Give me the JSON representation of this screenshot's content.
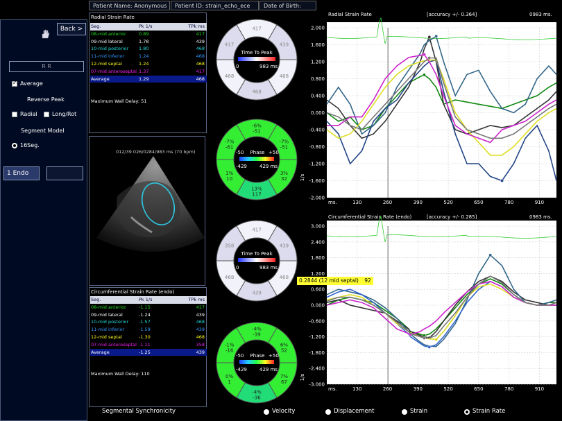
{
  "header": {
    "patient_name": "Patient Name: Anonymous",
    "patient_id": "Patient ID: strain_echo_ece",
    "date_of_birth": "Date of Birth:"
  },
  "left_panel": {
    "back_label": "Back >",
    "rr_label": "R R",
    "average_label": "Average",
    "reverse_peak_label": "Reverse Peak",
    "radial_label": "Radial",
    "longrot_label": "Long/Rot",
    "segment_model_label": "Segment Model",
    "seg16_label": "16Seg.",
    "endo_label": "1 Endo",
    "average_checked": true,
    "seg16_selected": true
  },
  "radial_table": {
    "title": "Radial Strain Rate",
    "headers": [
      "Seg.",
      "Pk 1/s",
      "TPk ms"
    ],
    "rows": [
      {
        "seg": "08-mid anterior",
        "pk": "0.89",
        "tpk": "417",
        "color": "#22dd22"
      },
      {
        "seg": "09-mid lateral",
        "pk": "1.78",
        "tpk": "439",
        "color": "#ffffff"
      },
      {
        "seg": "10-mid posterior",
        "pk": "1.80",
        "tpk": "468",
        "color": "#22dddd"
      },
      {
        "seg": "11-mid inferior",
        "pk": "1.24",
        "tpk": "468",
        "color": "#3399ff"
      },
      {
        "seg": "12-mid septal",
        "pk": "1.24",
        "tpk": "468",
        "color": "#ffff22"
      },
      {
        "seg": "07-mid anteroseptal",
        "pk": "1.37",
        "tpk": "417",
        "color": "#ee22ee"
      }
    ],
    "average": {
      "seg": "Average",
      "pk": "1.29",
      "tpk": "468"
    },
    "max_wall_delay": "Maximum Wall Delay: 51"
  },
  "circ_table": {
    "title": "Circumferential Strain Rate (endo)",
    "headers": [
      "Seg.",
      "Pk 1/s",
      "TPk ms"
    ],
    "rows": [
      {
        "seg": "08-mid anterior",
        "pk": "-1.15",
        "tpk": "417",
        "color": "#22dd22"
      },
      {
        "seg": "09-mid lateral",
        "pk": "-1.24",
        "tpk": "439",
        "color": "#ffffff"
      },
      {
        "seg": "10-mid posterior",
        "pk": "-1.57",
        "tpk": "468",
        "color": "#22dddd"
      },
      {
        "seg": "11-mid inferior",
        "pk": "-1.59",
        "tpk": "439",
        "color": "#3399ff"
      },
      {
        "seg": "12-mid septal",
        "pk": "-1.30",
        "tpk": "468",
        "color": "#ffff22"
      },
      {
        "seg": "07-mid anteroseptal",
        "pk": "-1.11",
        "tpk": "358",
        "color": "#ee22ee"
      }
    ],
    "average": {
      "seg": "Average",
      "pk": "-1.25",
      "tpk": "439"
    },
    "max_wall_delay": "Maximum Wall Delay: 110"
  },
  "image_caption": "012/39  026/0284/983 ms  (70 bpm)",
  "ttp_top": {
    "label": "Time To Peak",
    "range_min": "0",
    "range_max": "983 ms",
    "segments": [
      "417",
      "439",
      "468",
      "468",
      "468",
      "417"
    ]
  },
  "phase_top": {
    "label": "Phase",
    "neg": "-50",
    "pos": "+50",
    "range_min": "-429",
    "range_max": "429 ms",
    "segments": [
      {
        "top": "-6%",
        "bottom": "-51"
      },
      {
        "top": "-7%",
        "bottom": "-51"
      },
      {
        "top": "3%",
        "bottom": "32"
      },
      {
        "top": "13%",
        "bottom": "117"
      },
      {
        "top": "1%",
        "bottom": "10"
      },
      {
        "top": "-7%",
        "bottom": "-61"
      }
    ]
  },
  "ttp_bottom": {
    "label": "Time To Peak",
    "range_min": "0",
    "range_max": "983 ms",
    "segments": [
      "417",
      "439",
      "468",
      "439",
      "468",
      "358"
    ]
  },
  "phase_bottom": {
    "label": "Phase",
    "neg": "-50",
    "pos": "+50",
    "range_min": "-429",
    "range_max": "429 ms",
    "segments": [
      {
        "top": "-4%",
        "bottom": "-39"
      },
      {
        "top": "6%",
        "bottom": "52"
      },
      {
        "top": "7%",
        "bottom": "67"
      },
      {
        "top": "-4%",
        "bottom": "-36"
      },
      {
        "top": "0%",
        "bottom": "1"
      },
      {
        "top": "-1%",
        "bottom": "-16"
      }
    ]
  },
  "radial_chart_header": {
    "title": "Radial Strain Rate",
    "accuracy": "[accuracy +/- 0.364]",
    "time": "0983 ms."
  },
  "circ_chart_header": {
    "title": "Circumferential Strain Rate (endo)",
    "accuracy": "[accuracy +/- 0.285]",
    "time": "0983 ms."
  },
  "tooltip": {
    "text": "0.2844  (12 mid septal)",
    "value": "92"
  },
  "unit_label": "1/s",
  "bottom_bar": {
    "synchronicity": "Segmental Synchronicity",
    "velocity": "Velocity",
    "displacement": "Displacement",
    "strain": "Strain",
    "strain_rate": "Strain Rate",
    "selected": "strain_rate"
  },
  "chart_data": [
    {
      "type": "line",
      "title": "Radial Strain Rate",
      "xlabel": "ms.",
      "ylabel": "1/s",
      "x_ticks": [
        "130",
        "260",
        "390",
        "520",
        "650",
        "780",
        "910"
      ],
      "y_ticks": [
        "2.000",
        "1.600",
        "1.200",
        "0.800",
        "0.400",
        "0.000",
        "-0.400",
        "-0.800",
        "-1.200",
        "-1.600",
        "-2.000"
      ],
      "xlim": [
        0,
        983
      ],
      "ylim": [
        -2.0,
        2.0
      ],
      "x": [
        0,
        50,
        100,
        150,
        200,
        250,
        300,
        350,
        400,
        417,
        439,
        468,
        500,
        550,
        600,
        650,
        700,
        750,
        800,
        850,
        900,
        950,
        983
      ],
      "series": [
        {
          "name": "08-mid anterior",
          "color": "#118811",
          "values": [
            0.0,
            -0.2,
            -0.1,
            -0.4,
            -0.3,
            0.1,
            0.4,
            0.7,
            0.85,
            0.89,
            0.8,
            0.6,
            0.2,
            0.3,
            0.25,
            0.2,
            0.15,
            0.1,
            0.2,
            0.3,
            0.4,
            0.6,
            0.7
          ]
        },
        {
          "name": "09-mid lateral",
          "color": "#333333",
          "values": [
            0.3,
            0.1,
            -0.3,
            -0.6,
            -0.5,
            -0.2,
            0.2,
            0.6,
            1.2,
            1.5,
            1.78,
            1.2,
            0.2,
            -0.4,
            -0.5,
            -0.4,
            -0.3,
            -0.35,
            -0.3,
            -0.1,
            0.1,
            0.3,
            0.5
          ]
        },
        {
          "name": "10-mid posterior",
          "color": "#336688",
          "values": [
            0.2,
            0.6,
            0.2,
            -0.5,
            -0.3,
            0.0,
            0.6,
            1.0,
            1.4,
            1.6,
            1.7,
            1.8,
            1.2,
            0.4,
            0.9,
            1.0,
            0.5,
            0.1,
            0.0,
            0.2,
            0.8,
            1.1,
            0.9
          ]
        },
        {
          "name": "11-mid inferior",
          "color": "#224488",
          "values": [
            -0.2,
            -0.5,
            -1.2,
            -0.9,
            -0.2,
            0.1,
            0.3,
            0.7,
            1.0,
            1.1,
            1.2,
            1.24,
            0.5,
            -0.5,
            -1.2,
            -1.2,
            -1.5,
            -1.6,
            -1.2,
            -0.6,
            -0.3,
            -0.9,
            -1.6
          ]
        },
        {
          "name": "12-mid septal",
          "color": "#dddd22",
          "values": [
            -0.4,
            -0.6,
            -0.5,
            -0.2,
            0.2,
            0.6,
            0.9,
            1.1,
            1.2,
            1.22,
            1.24,
            1.24,
            0.8,
            0.0,
            -0.4,
            -0.7,
            -1.0,
            -1.0,
            -0.8,
            -0.5,
            -0.2,
            0.0,
            0.1
          ]
        },
        {
          "name": "07-mid anteroseptal",
          "color": "#cc22cc",
          "values": [
            -0.3,
            -0.3,
            -0.1,
            -0.1,
            0.3,
            0.8,
            1.1,
            1.3,
            1.35,
            1.37,
            1.2,
            0.9,
            0.4,
            -0.3,
            -0.5,
            -0.6,
            -0.7,
            -0.4,
            -0.3,
            -0.2,
            0.0,
            0.2,
            0.3
          ]
        },
        {
          "name": "Average",
          "color": "#777777",
          "values": [
            0.0,
            -0.1,
            -0.3,
            -0.4,
            -0.1,
            0.2,
            0.5,
            0.8,
            1.1,
            1.2,
            1.29,
            1.29,
            0.7,
            -0.1,
            -0.4,
            -0.5,
            -0.6,
            -0.6,
            -0.5,
            -0.3,
            -0.1,
            0.1,
            0.2
          ]
        }
      ]
    },
    {
      "type": "line",
      "title": "Circumferential Strain Rate (endo)",
      "xlabel": "ms.",
      "ylabel": "1/s",
      "x_ticks": [
        "130",
        "260",
        "390",
        "520",
        "650",
        "780",
        "910"
      ],
      "y_ticks": [
        "3.000",
        "2.400",
        "1.800",
        "1.200",
        "0.600",
        "0.000",
        "-0.600",
        "-1.200",
        "-1.800",
        "-2.400",
        "-3.000"
      ],
      "xlim": [
        0,
        983
      ],
      "ylim": [
        -3.0,
        3.0
      ],
      "x": [
        0,
        50,
        100,
        150,
        200,
        250,
        300,
        350,
        358,
        400,
        417,
        439,
        468,
        500,
        550,
        600,
        650,
        700,
        750,
        800,
        850,
        900,
        950,
        983
      ],
      "series": [
        {
          "name": "08-mid anterior",
          "color": "#118811",
          "values": [
            0.0,
            0.2,
            0.3,
            0.2,
            0.1,
            -0.2,
            -0.5,
            -0.9,
            -1.0,
            -1.1,
            -1.15,
            -1.1,
            -0.9,
            -0.6,
            -0.1,
            0.4,
            0.8,
            1.0,
            0.8,
            0.4,
            0.1,
            0.0,
            0.1,
            0.1
          ]
        },
        {
          "name": "09-mid lateral",
          "color": "#333333",
          "values": [
            0.1,
            0.2,
            0.0,
            -0.1,
            -0.2,
            -0.3,
            -0.6,
            -0.9,
            -1.0,
            -1.15,
            -1.2,
            -1.24,
            -1.0,
            -0.6,
            0.0,
            0.5,
            0.9,
            1.1,
            0.9,
            0.5,
            0.2,
            0.1,
            0.0,
            0.0
          ]
        },
        {
          "name": "10-mid posterior",
          "color": "#336688",
          "values": [
            0.4,
            0.6,
            0.5,
            0.4,
            0.2,
            -0.1,
            -0.5,
            -1.0,
            -1.1,
            -1.4,
            -1.5,
            -1.55,
            -1.57,
            -1.3,
            -0.7,
            0.2,
            1.2,
            1.9,
            1.5,
            0.6,
            0.1,
            0.0,
            0.1,
            0.2
          ]
        },
        {
          "name": "11-mid inferior",
          "color": "#3366cc",
          "values": [
            0.3,
            0.5,
            0.6,
            0.4,
            0.1,
            -0.3,
            -0.7,
            -1.1,
            -1.2,
            -1.45,
            -1.55,
            -1.59,
            -1.5,
            -1.2,
            -0.6,
            0.1,
            0.6,
            0.9,
            0.7,
            0.3,
            0.1,
            0.0,
            0.0,
            0.1
          ]
        },
        {
          "name": "12-mid septal",
          "color": "#dddd22",
          "values": [
            0.2,
            0.3,
            0.4,
            0.3,
            0.0,
            -0.3,
            -0.7,
            -1.0,
            -1.05,
            -1.2,
            -1.25,
            -1.28,
            -1.3,
            -1.0,
            -0.4,
            0.3,
            0.7,
            0.8,
            0.6,
            0.3,
            0.1,
            0.0,
            0.0,
            0.1
          ]
        },
        {
          "name": "07-mid anteroseptal",
          "color": "#cc22cc",
          "values": [
            0.0,
            0.1,
            0.2,
            0.1,
            -0.1,
            -0.5,
            -0.9,
            -1.08,
            -1.11,
            -1.0,
            -0.9,
            -0.8,
            -0.6,
            -0.3,
            0.1,
            0.5,
            0.8,
            0.9,
            0.7,
            0.3,
            0.1,
            0.0,
            0.0,
            0.0
          ]
        },
        {
          "name": "Average",
          "color": "#777777",
          "values": [
            0.15,
            0.3,
            0.3,
            0.2,
            0.0,
            -0.3,
            -0.65,
            -1.0,
            -1.08,
            -1.2,
            -1.25,
            -1.25,
            -1.15,
            -0.8,
            -0.3,
            0.3,
            0.8,
            1.1,
            0.85,
            0.4,
            0.1,
            0.0,
            0.0,
            0.1
          ]
        }
      ]
    }
  ]
}
